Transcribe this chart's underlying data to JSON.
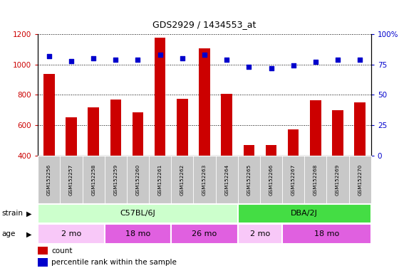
{
  "title": "GDS2929 / 1434553_at",
  "samples": [
    "GSM152256",
    "GSM152257",
    "GSM152258",
    "GSM152259",
    "GSM152260",
    "GSM152261",
    "GSM152262",
    "GSM152263",
    "GSM152264",
    "GSM152265",
    "GSM152266",
    "GSM152267",
    "GSM152268",
    "GSM152269",
    "GSM152270"
  ],
  "counts": [
    940,
    650,
    720,
    770,
    685,
    1175,
    775,
    1105,
    805,
    470,
    468,
    575,
    765,
    700,
    750
  ],
  "percentiles": [
    82,
    78,
    80,
    79,
    79,
    83,
    80,
    83,
    79,
    73,
    72,
    74,
    77,
    79,
    79
  ],
  "ylim_left": [
    400,
    1200
  ],
  "ylim_right": [
    0,
    100
  ],
  "yticks_left": [
    400,
    600,
    800,
    1000,
    1200
  ],
  "yticks_right": [
    0,
    25,
    50,
    75,
    100
  ],
  "ytick_right_labels": [
    "0",
    "25",
    "50",
    "75",
    "100%"
  ],
  "bar_color": "#cc0000",
  "dot_color": "#0000cc",
  "strain_groups": [
    {
      "label": "C57BL/6J",
      "start": 0,
      "end": 8,
      "color": "#ccffcc"
    },
    {
      "label": "DBA/2J",
      "start": 9,
      "end": 14,
      "color": "#44dd44"
    }
  ],
  "age_groups": [
    {
      "label": "2 mo",
      "start": 0,
      "end": 2,
      "color": "#f8c8f8"
    },
    {
      "label": "18 mo",
      "start": 3,
      "end": 5,
      "color": "#e060e0"
    },
    {
      "label": "26 mo",
      "start": 6,
      "end": 8,
      "color": "#e060e0"
    },
    {
      "label": "2 mo",
      "start": 9,
      "end": 10,
      "color": "#f8c8f8"
    },
    {
      "label": "18 mo",
      "start": 11,
      "end": 14,
      "color": "#e060e0"
    }
  ],
  "bar_width": 0.5,
  "xlabels_bg": "#c8c8c8",
  "plot_bg": "#ffffff"
}
